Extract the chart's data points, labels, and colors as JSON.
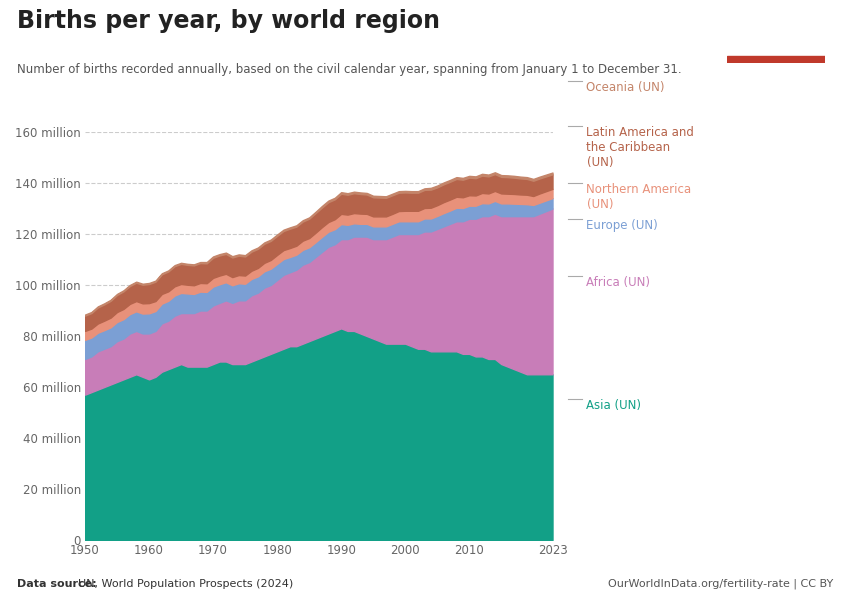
{
  "title": "Births per year, by world region",
  "subtitle": "Number of births recorded annually, based on the civil calendar year, spanning from January 1 to December 31.",
  "datasource_bold": "Data source: ",
  "datasource_normal": "UN, World Population Prospects (2024)",
  "url": "OurWorldInData.org/fertility-rate | CC BY",
  "years": [
    1950,
    1951,
    1952,
    1953,
    1954,
    1955,
    1956,
    1957,
    1958,
    1959,
    1960,
    1961,
    1962,
    1963,
    1964,
    1965,
    1966,
    1967,
    1968,
    1969,
    1970,
    1971,
    1972,
    1973,
    1974,
    1975,
    1976,
    1977,
    1978,
    1979,
    1980,
    1981,
    1982,
    1983,
    1984,
    1985,
    1986,
    1987,
    1988,
    1989,
    1990,
    1991,
    1992,
    1993,
    1994,
    1995,
    1996,
    1997,
    1998,
    1999,
    2000,
    2001,
    2002,
    2003,
    2004,
    2005,
    2006,
    2007,
    2008,
    2009,
    2010,
    2011,
    2012,
    2013,
    2014,
    2015,
    2016,
    2017,
    2018,
    2019,
    2020,
    2021,
    2022,
    2023
  ],
  "asia": [
    57,
    58,
    59,
    60,
    61,
    62,
    63,
    64,
    65,
    64,
    63,
    64,
    66,
    67,
    68,
    69,
    68,
    68,
    68,
    68,
    69,
    70,
    70,
    69,
    69,
    69,
    70,
    71,
    72,
    73,
    74,
    75,
    76,
    76,
    77,
    78,
    79,
    80,
    81,
    82,
    83,
    82,
    82,
    81,
    80,
    79,
    78,
    77,
    77,
    77,
    77,
    76,
    75,
    75,
    74,
    74,
    74,
    74,
    74,
    73,
    73,
    72,
    72,
    71,
    71,
    69,
    68,
    67,
    66,
    65,
    65,
    65,
    65,
    65
  ],
  "africa": [
    14,
    14,
    15,
    15,
    15,
    16,
    16,
    17,
    17,
    17,
    18,
    18,
    19,
    19,
    20,
    20,
    21,
    21,
    22,
    22,
    23,
    23,
    24,
    24,
    25,
    25,
    26,
    26,
    27,
    27,
    28,
    29,
    29,
    30,
    31,
    31,
    32,
    33,
    34,
    34,
    35,
    36,
    37,
    38,
    39,
    39,
    40,
    41,
    42,
    43,
    43,
    44,
    45,
    46,
    47,
    48,
    49,
    50,
    51,
    52,
    53,
    54,
    55,
    56,
    57,
    58,
    59,
    60,
    61,
    62,
    62,
    63,
    64,
    65
  ],
  "europe": [
    7.5,
    7.4,
    7.3,
    7.3,
    7.4,
    7.5,
    7.6,
    7.6,
    7.7,
    7.8,
    7.9,
    7.8,
    7.7,
    7.8,
    7.9,
    7.9,
    7.7,
    7.5,
    7.4,
    7.3,
    7.4,
    7.3,
    7.1,
    6.9,
    6.7,
    6.5,
    6.4,
    6.4,
    6.4,
    6.4,
    6.3,
    6.2,
    6.0,
    5.9,
    5.8,
    5.8,
    5.8,
    5.9,
    5.9,
    5.9,
    5.9,
    5.6,
    5.2,
    5.0,
    5.0,
    5.0,
    5.0,
    5.0,
    5.0,
    5.0,
    5.0,
    5.0,
    5.0,
    5.1,
    5.1,
    5.1,
    5.2,
    5.2,
    5.3,
    5.2,
    5.1,
    5.1,
    5.1,
    5.0,
    5.0,
    5.0,
    5.0,
    4.9,
    4.8,
    4.7,
    4.4,
    4.3,
    4.2,
    4.1
  ],
  "northern_america": [
    3.5,
    3.5,
    3.6,
    3.7,
    3.8,
    3.9,
    4.0,
    4.0,
    4.0,
    4.0,
    4.0,
    3.9,
    3.8,
    3.7,
    3.6,
    3.5,
    3.4,
    3.4,
    3.4,
    3.4,
    3.4,
    3.4,
    3.3,
    3.2,
    3.2,
    3.2,
    3.2,
    3.3,
    3.3,
    3.4,
    3.5,
    3.5,
    3.5,
    3.5,
    3.6,
    3.6,
    3.7,
    3.8,
    3.8,
    3.9,
    4.0,
    4.0,
    4.0,
    4.0,
    3.9,
    3.9,
    3.9,
    3.9,
    3.9,
    4.0,
    4.1,
    4.1,
    4.1,
    4.1,
    4.2,
    4.2,
    4.3,
    4.3,
    4.3,
    4.2,
    4.1,
    4.0,
    4.0,
    3.9,
    3.9,
    3.9,
    3.8,
    3.8,
    3.7,
    3.7,
    3.5,
    3.6,
    3.6,
    3.6
  ],
  "latin_america": [
    6.0,
    6.1,
    6.3,
    6.4,
    6.6,
    6.7,
    6.9,
    7.0,
    7.2,
    7.3,
    7.5,
    7.6,
    7.7,
    7.8,
    7.9,
    7.9,
    7.8,
    7.8,
    7.8,
    7.8,
    7.9,
    7.9,
    7.8,
    7.7,
    7.6,
    7.5,
    7.5,
    7.5,
    7.5,
    7.5,
    7.5,
    7.5,
    7.6,
    7.5,
    7.5,
    7.6,
    7.7,
    7.7,
    7.8,
    7.8,
    7.9,
    7.8,
    7.8,
    7.7,
    7.6,
    7.5,
    7.4,
    7.3,
    7.3,
    7.2,
    7.2,
    7.1,
    7.1,
    7.1,
    7.1,
    7.0,
    7.0,
    7.0,
    7.0,
    6.9,
    6.9,
    6.8,
    6.8,
    6.7,
    6.6,
    6.5,
    6.5,
    6.4,
    6.3,
    6.2,
    6.0,
    5.9,
    5.8,
    5.7
  ],
  "oceania": [
    0.4,
    0.4,
    0.4,
    0.4,
    0.4,
    0.4,
    0.4,
    0.4,
    0.4,
    0.4,
    0.4,
    0.4,
    0.4,
    0.4,
    0.4,
    0.4,
    0.4,
    0.4,
    0.4,
    0.5,
    0.5,
    0.5,
    0.5,
    0.5,
    0.5,
    0.5,
    0.5,
    0.5,
    0.5,
    0.5,
    0.5,
    0.5,
    0.5,
    0.5,
    0.5,
    0.5,
    0.5,
    0.6,
    0.6,
    0.6,
    0.6,
    0.6,
    0.6,
    0.6,
    0.6,
    0.6,
    0.6,
    0.6,
    0.6,
    0.6,
    0.6,
    0.6,
    0.6,
    0.6,
    0.7,
    0.7,
    0.7,
    0.7,
    0.7,
    0.7,
    0.7,
    0.7,
    0.7,
    0.7,
    0.7,
    0.7,
    0.7,
    0.7,
    0.7,
    0.7,
    0.7,
    0.7,
    0.7,
    0.7
  ],
  "color_asia": "#12a087",
  "color_africa": "#c87db8",
  "color_europe": "#7b9fd4",
  "color_northern_america": "#e8917a",
  "color_latin_america": "#b5634a",
  "color_oceania": "#c4856a",
  "background_color": "#ffffff",
  "ylim": [
    0,
    160
  ],
  "yticks": [
    0,
    20,
    40,
    60,
    80,
    100,
    120,
    140,
    160
  ],
  "ytick_labels": [
    "0",
    "20 million",
    "40 million",
    "60 million",
    "80 million",
    "100 million",
    "120 million",
    "140 million",
    "160 million"
  ],
  "xticks": [
    1950,
    1960,
    1970,
    1980,
    1990,
    2000,
    2010,
    2023
  ],
  "logo_bg": "#1b3a5c",
  "logo_red": "#c0392b"
}
